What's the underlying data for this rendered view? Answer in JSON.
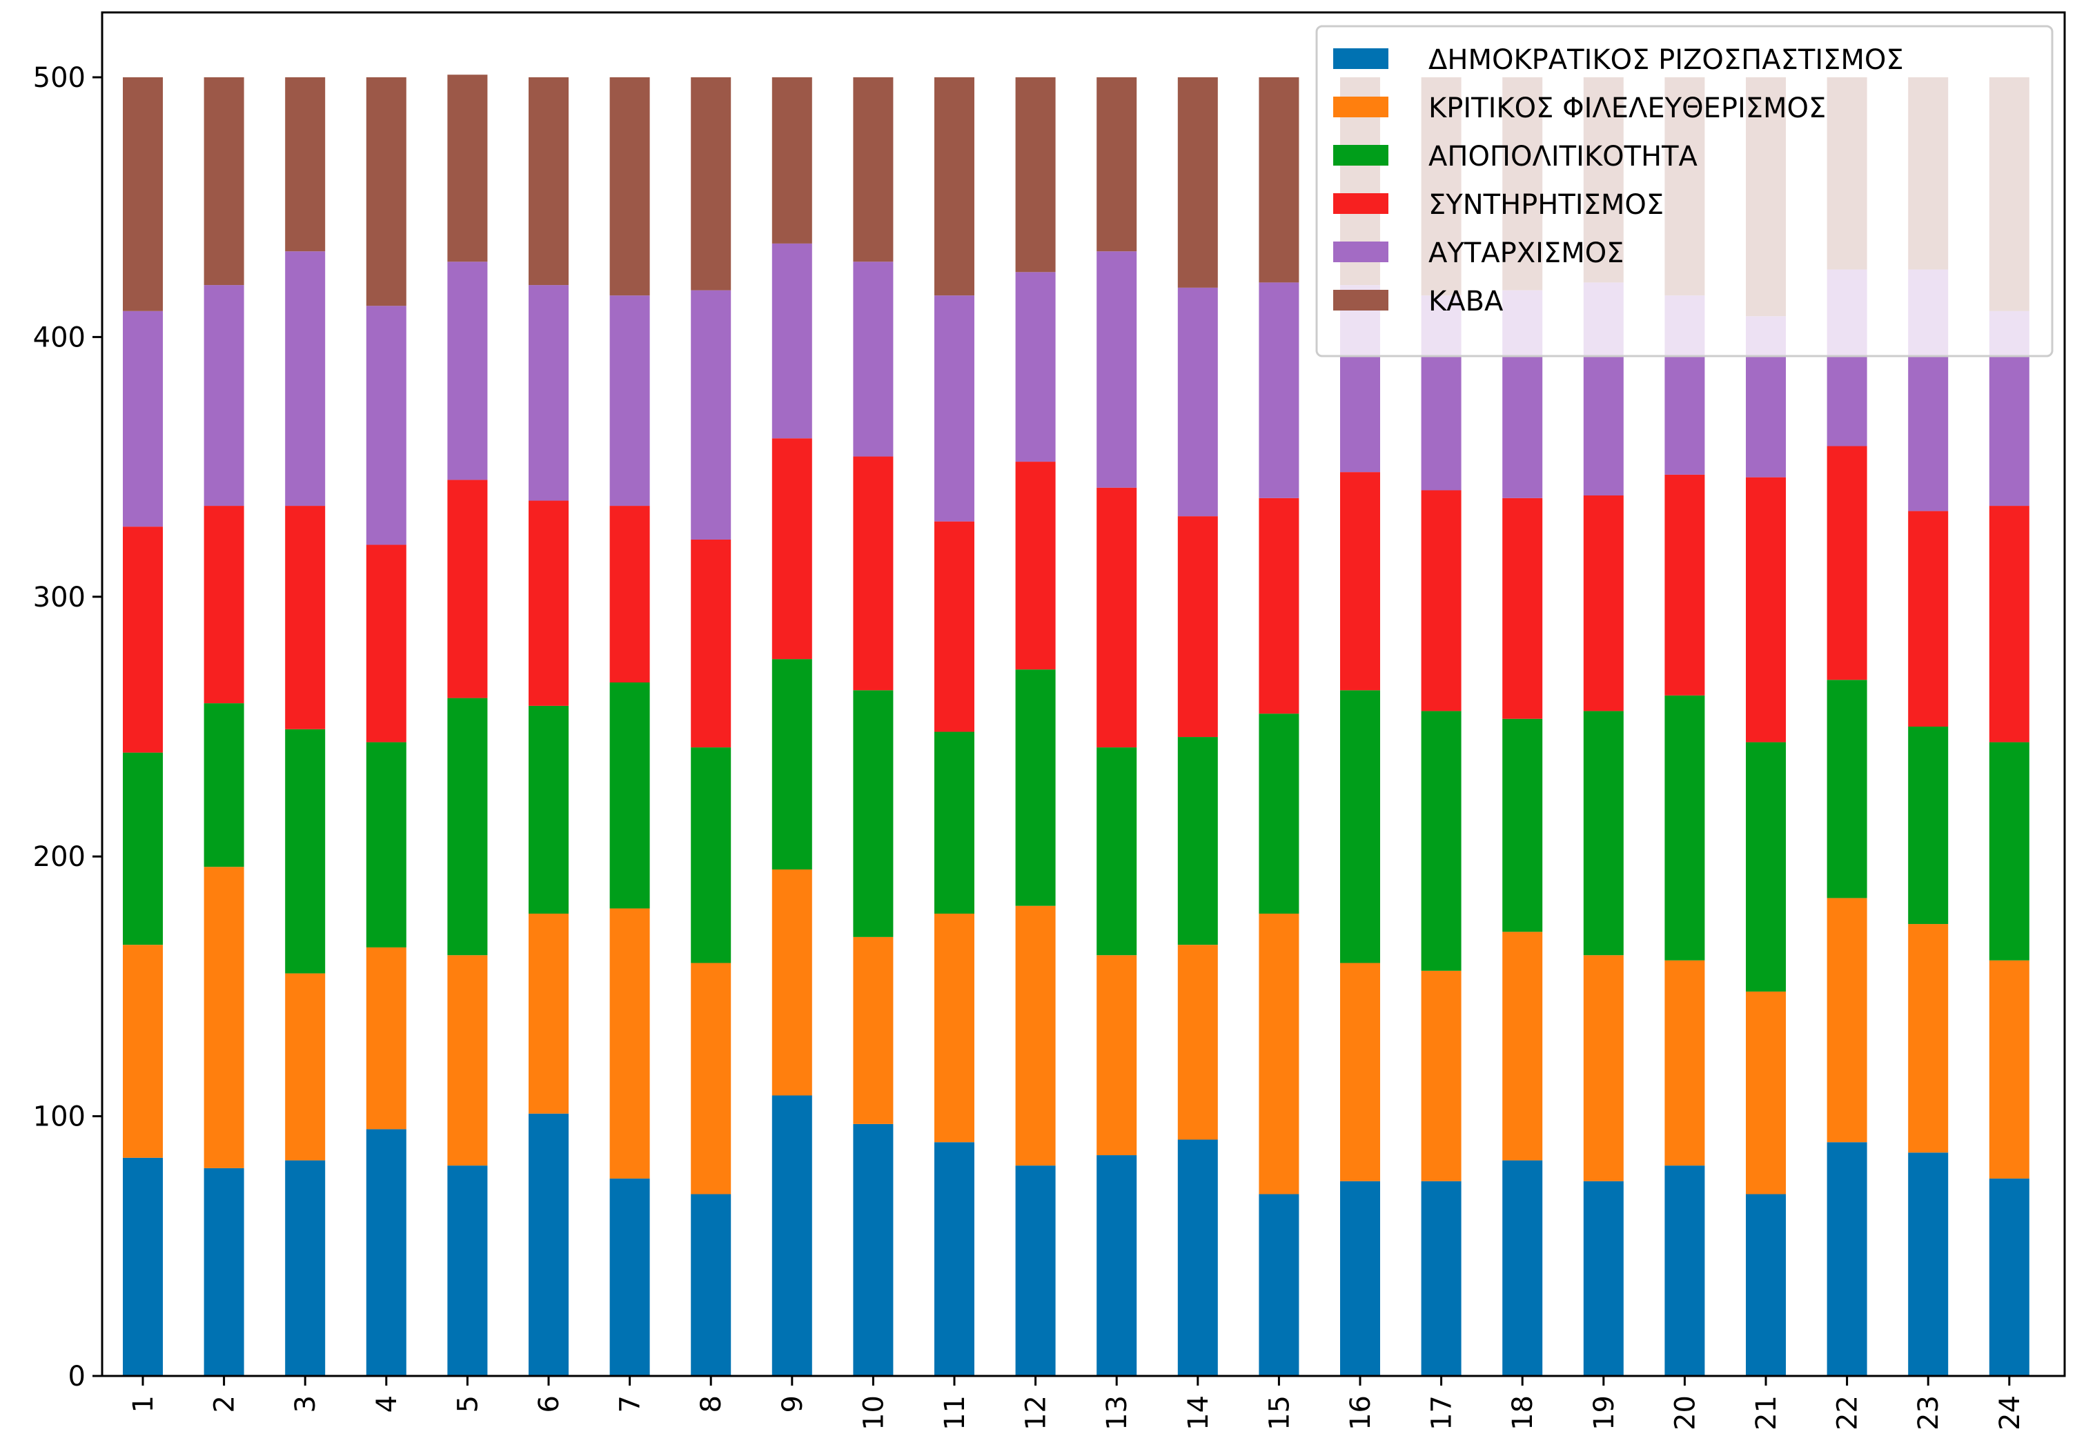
{
  "chart_data": {
    "type": "bar",
    "stacked": true,
    "title": "",
    "xlabel": "",
    "ylabel": "",
    "ylim": [
      0,
      500
    ],
    "yticks": [
      0,
      100,
      200,
      300,
      400,
      500
    ],
    "grid": false,
    "legend_position": "top-right",
    "categories": [
      "1",
      "2",
      "3",
      "4",
      "5",
      "6",
      "7",
      "8",
      "9",
      "10",
      "11",
      "12",
      "13",
      "14",
      "15",
      "16",
      "17",
      "18",
      "19",
      "20",
      "21",
      "22",
      "23",
      "24"
    ],
    "series": [
      {
        "name": "ΔΗΜΟΚΡΑΤΙΚΟΣ ΡΙΖΟΣΠΑΣΤΙΣΜΟΣ",
        "color": "#0072b2",
        "values": [
          84,
          80,
          83,
          95,
          81,
          101,
          76,
          70,
          108,
          97,
          90,
          81,
          85,
          91,
          70,
          75,
          75,
          83,
          75,
          81,
          70,
          90,
          86,
          76
        ]
      },
      {
        "name": "ΚΡΙΤΙΚΟΣ ΦΙΛΕΛΕΥΘΕΡΙΣΜΟΣ",
        "color": "#ff7f0e",
        "values": [
          82,
          116,
          72,
          70,
          81,
          77,
          104,
          89,
          87,
          72,
          88,
          100,
          77,
          75,
          108,
          84,
          81,
          88,
          87,
          79,
          78,
          94,
          88,
          84
        ]
      },
      {
        "name": "ΑΠΟΠΟΛΙΤΙΚΟΤΗΤΑ",
        "color": "#009e1a",
        "values": [
          74,
          63,
          94,
          79,
          99,
          80,
          87,
          83,
          81,
          95,
          70,
          91,
          80,
          80,
          77,
          105,
          100,
          82,
          94,
          102,
          96,
          84,
          76,
          84
        ]
      },
      {
        "name": "ΣΥΝΤΗΡΗΤΙΣΜΟΣ",
        "color": "#f72020",
        "values": [
          87,
          76,
          86,
          76,
          84,
          79,
          68,
          80,
          85,
          90,
          81,
          80,
          100,
          85,
          83,
          84,
          85,
          85,
          83,
          85,
          102,
          90,
          83,
          91
        ]
      },
      {
        "name": "ΑΥΤΑΡΧΙΣΜΟΣ",
        "color": "#a36bc4",
        "values": [
          83,
          85,
          98,
          92,
          84,
          83,
          81,
          96,
          75,
          75,
          87,
          73,
          91,
          88,
          83,
          72,
          75,
          80,
          82,
          69,
          62,
          68,
          93,
          75
        ]
      },
      {
        "name": "ΚΑΒΑ",
        "color": "#9c5848",
        "values": [
          90,
          80,
          67,
          88,
          72,
          80,
          84,
          82,
          64,
          71,
          84,
          75,
          67,
          81,
          79,
          80,
          84,
          82,
          79,
          84,
          92,
          74,
          74,
          90
        ]
      }
    ]
  }
}
